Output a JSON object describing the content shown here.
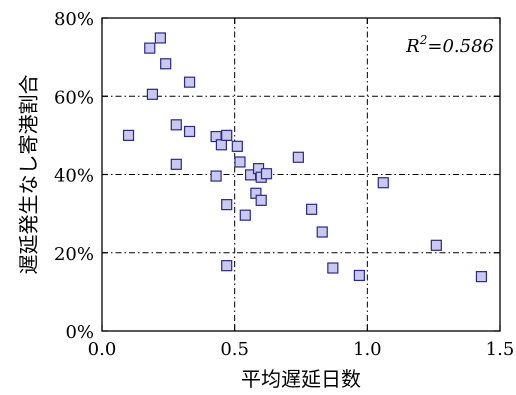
{
  "chart_data": {
    "type": "scatter",
    "xlabel": "平均遅延日数",
    "ylabel": "遅延発生なし寄港割合",
    "xlim": [
      0.0,
      1.5
    ],
    "ylim": [
      0,
      80
    ],
    "xticks": [
      0.0,
      0.5,
      1.0,
      1.5
    ],
    "xtick_labels": [
      "0.0",
      "0.5",
      "1.0",
      "1.5"
    ],
    "yticks": [
      0,
      20,
      40,
      60,
      80
    ],
    "ytick_labels": [
      "0%",
      "20%",
      "40%",
      "60%",
      "80%"
    ],
    "grid": true,
    "annotation": {
      "prefix": "R",
      "superscript": "2",
      "value": "=0.586"
    },
    "marker": {
      "shape": "square",
      "fill": "#c8c8f0",
      "stroke": "#2a2a8a"
    },
    "points": [
      {
        "x": 0.1,
        "y": 50.0
      },
      {
        "x": 0.18,
        "y": 72.3
      },
      {
        "x": 0.19,
        "y": 60.5
      },
      {
        "x": 0.22,
        "y": 74.9
      },
      {
        "x": 0.24,
        "y": 68.3
      },
      {
        "x": 0.28,
        "y": 52.7
      },
      {
        "x": 0.28,
        "y": 42.6
      },
      {
        "x": 0.33,
        "y": 63.6
      },
      {
        "x": 0.33,
        "y": 51.0
      },
      {
        "x": 0.43,
        "y": 49.7
      },
      {
        "x": 0.43,
        "y": 39.6
      },
      {
        "x": 0.45,
        "y": 47.6
      },
      {
        "x": 0.47,
        "y": 50.0
      },
      {
        "x": 0.47,
        "y": 32.3
      },
      {
        "x": 0.47,
        "y": 16.7
      },
      {
        "x": 0.51,
        "y": 47.2
      },
      {
        "x": 0.52,
        "y": 43.2
      },
      {
        "x": 0.54,
        "y": 29.6
      },
      {
        "x": 0.56,
        "y": 39.9
      },
      {
        "x": 0.58,
        "y": 35.2
      },
      {
        "x": 0.59,
        "y": 41.5
      },
      {
        "x": 0.6,
        "y": 39.3
      },
      {
        "x": 0.6,
        "y": 33.4
      },
      {
        "x": 0.62,
        "y": 40.2
      },
      {
        "x": 0.74,
        "y": 44.4
      },
      {
        "x": 0.79,
        "y": 31.1
      },
      {
        "x": 0.83,
        "y": 25.3
      },
      {
        "x": 0.87,
        "y": 16.1
      },
      {
        "x": 0.97,
        "y": 14.2
      },
      {
        "x": 1.06,
        "y": 37.9
      },
      {
        "x": 1.26,
        "y": 21.9
      },
      {
        "x": 1.43,
        "y": 13.9
      }
    ]
  }
}
